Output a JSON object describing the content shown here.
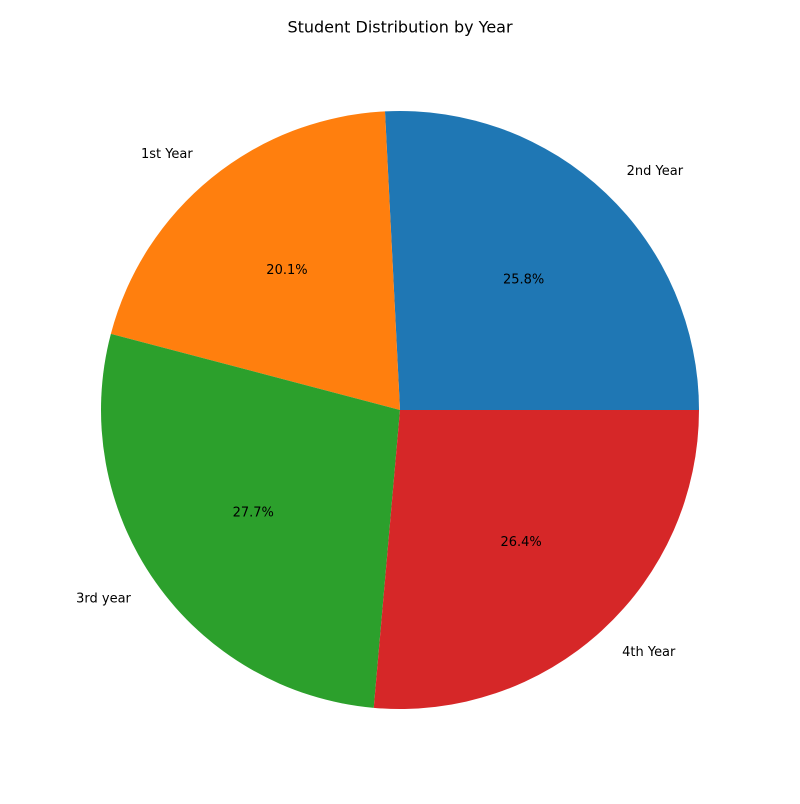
{
  "chart_data": {
    "type": "pie",
    "title": "Student Distribution by Year",
    "slices": [
      {
        "label": "2nd Year",
        "value": 25.8,
        "pct_label": "25.8%",
        "color": "#1f77b4"
      },
      {
        "label": "1st Year",
        "value": 20.1,
        "pct_label": "20.1%",
        "color": "#ff7f0e"
      },
      {
        "label": "3rd year",
        "value": 27.7,
        "pct_label": "27.7%",
        "color": "#2ca02c"
      },
      {
        "label": "4th Year",
        "value": 26.4,
        "pct_label": "26.4%",
        "color": "#d62728"
      }
    ],
    "start_angle_deg": 0,
    "direction": "counterclockwise",
    "legend": "none"
  }
}
